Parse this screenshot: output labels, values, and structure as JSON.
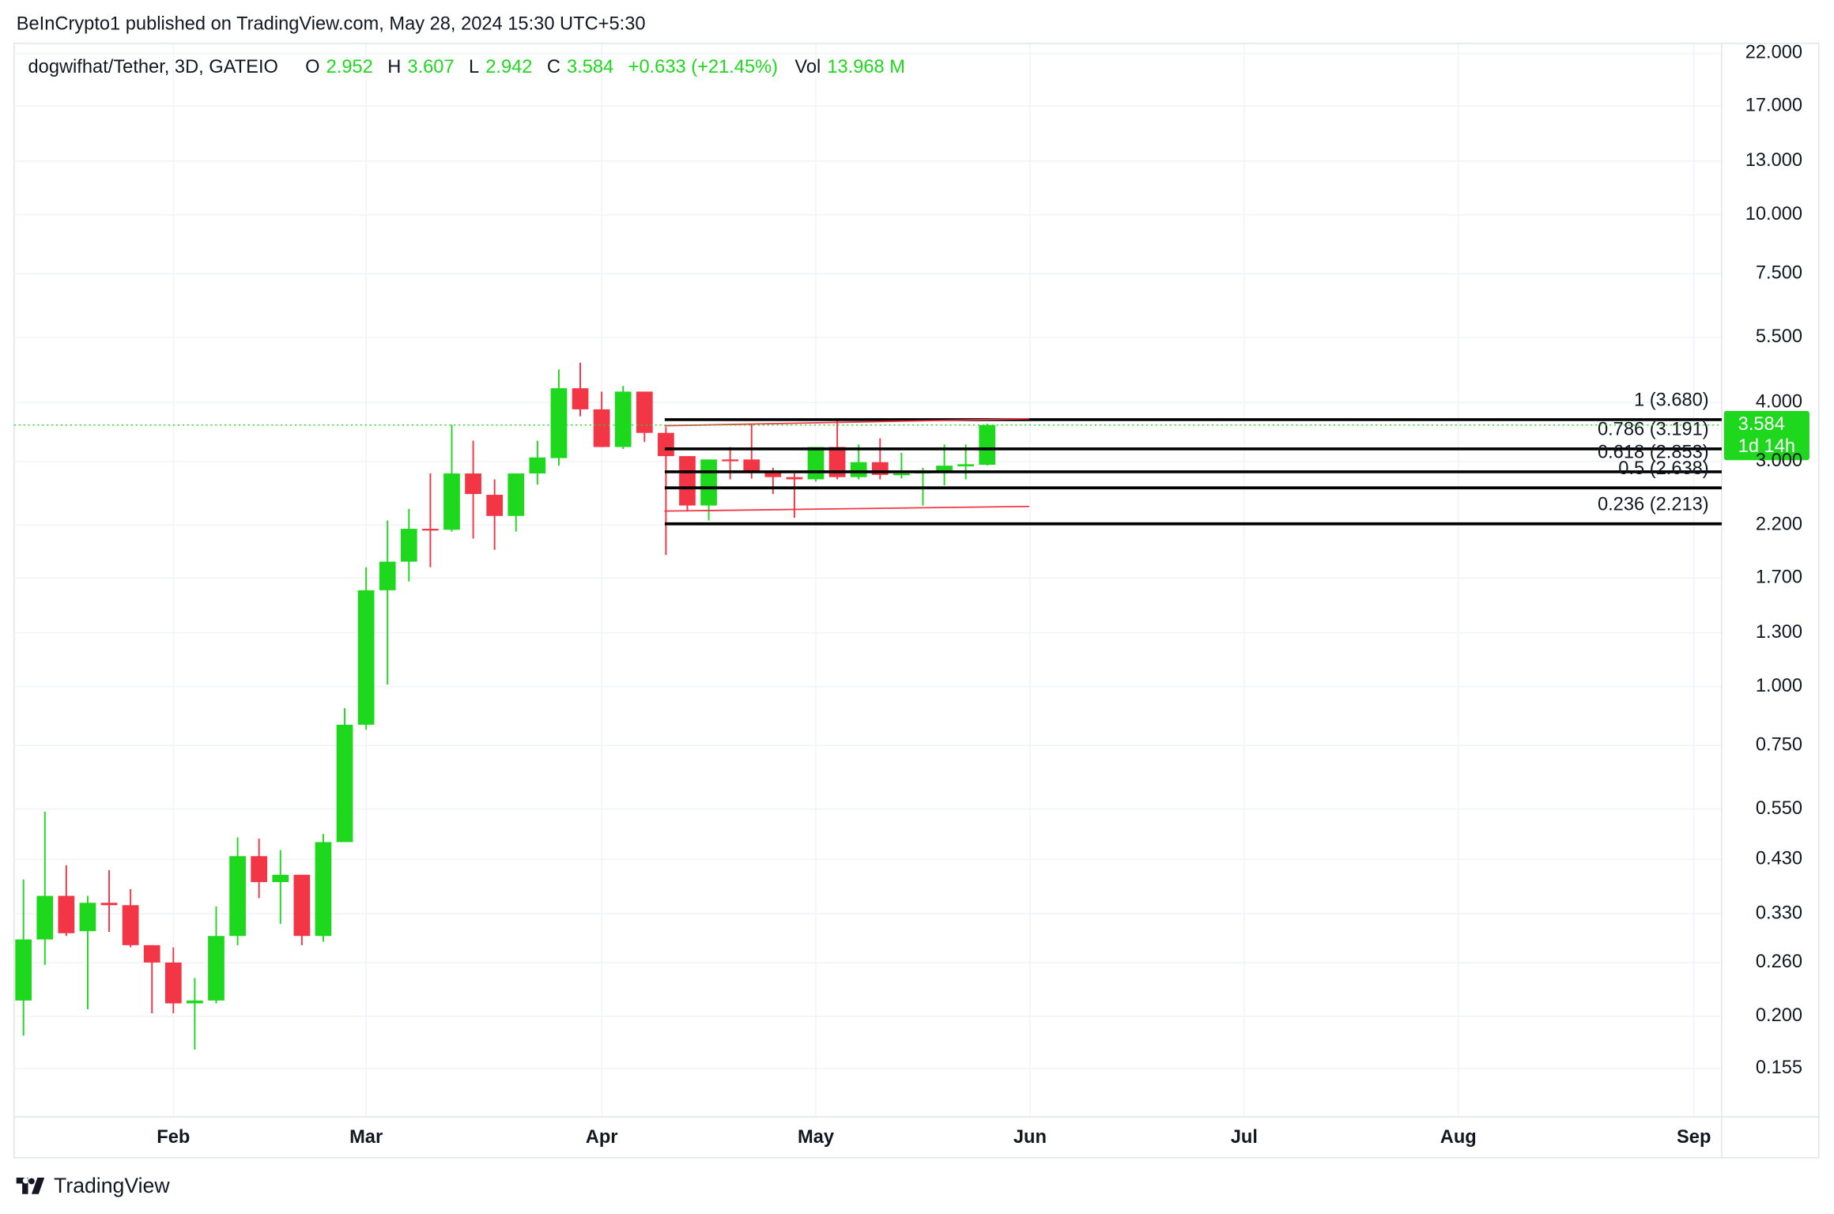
{
  "header": {
    "publisher": "BeInCrypto1 published on TradingView.com, May 28, 2024 15:30 UTC+5:30",
    "brand": "TradingView"
  },
  "chart_data": {
    "type": "candlestick",
    "title": "dogwifhat/Tether, 3D, GATEIO",
    "legend_labels": {
      "open": "O",
      "high": "H",
      "low": "L",
      "close": "C",
      "volume": "Vol"
    },
    "change": "+0.633 (+21.45%)",
    "volume": "13.968 M",
    "countdown": "1d 14h",
    "log_scale": true,
    "grid": true,
    "up_color": "#1ed81e",
    "down_color": "#f23645",
    "open": [
      0.216,
      0.291,
      0.36,
      0.303,
      0.348,
      0.344,
      0.283,
      0.26,
      0.213,
      0.216,
      0.296,
      0.437,
      0.385,
      0.399,
      0.296,
      0.468,
      0.83,
      1.6,
      1.84,
      2.16,
      2.15,
      2.83,
      2.55,
      2.3,
      2.83,
      3.05,
      4.29,
      3.87,
      3.22,
      4.22,
      3.45,
      3.08,
      2.42,
      3.03,
      3.03,
      2.86,
      2.78,
      2.75,
      3.22,
      2.78,
      2.99,
      2.81,
      2.83,
      2.86,
      2.93,
      2.952
    ],
    "high": [
      0.39,
      0.543,
      0.418,
      0.36,
      0.408,
      0.372,
      0.283,
      0.28,
      0.241,
      0.342,
      0.479,
      0.476,
      0.45,
      0.399,
      0.487,
      0.9,
      1.79,
      2.25,
      2.38,
      2.83,
      3.59,
      3.32,
      2.75,
      2.83,
      3.32,
      4.7,
      4.86,
      4.22,
      4.34,
      4.22,
      3.55,
      3.08,
      3.03,
      3.22,
      3.61,
      2.91,
      2.83,
      3.22,
      3.66,
      3.26,
      3.36,
      3.13,
      2.91,
      3.26,
      3.26,
      3.607
    ],
    "low": [
      0.182,
      0.257,
      0.296,
      0.207,
      0.302,
      0.28,
      0.203,
      0.203,
      0.17,
      0.213,
      0.283,
      0.356,
      0.314,
      0.283,
      0.288,
      0.468,
      0.81,
      1.01,
      1.67,
      1.79,
      2.13,
      2.06,
      1.95,
      2.13,
      2.68,
      2.94,
      3.74,
      3.22,
      3.19,
      3.3,
      1.9,
      2.35,
      2.25,
      2.75,
      2.76,
      2.56,
      2.28,
      2.72,
      2.75,
      2.75,
      2.75,
      2.76,
      2.42,
      2.67,
      2.75,
      2.942
    ],
    "close": [
      0.291,
      0.36,
      0.3,
      0.348,
      0.344,
      0.283,
      0.26,
      0.213,
      0.216,
      0.296,
      0.437,
      0.385,
      0.399,
      0.296,
      0.468,
      0.83,
      1.6,
      1.84,
      2.16,
      2.15,
      2.83,
      2.56,
      2.3,
      2.83,
      3.06,
      4.29,
      3.87,
      3.22,
      4.22,
      3.45,
      3.08,
      2.42,
      3.03,
      3.01,
      2.86,
      2.78,
      2.75,
      3.22,
      2.78,
      2.99,
      2.81,
      2.83,
      2.86,
      2.94,
      2.96,
      3.584
    ],
    "xlim": [
      -0.44,
      79.3
    ],
    "xticks": [
      {
        "value": 7,
        "label": "Feb"
      },
      {
        "value": 16,
        "label": "Mar"
      },
      {
        "value": 27,
        "label": "Apr"
      },
      {
        "value": 37,
        "label": "May"
      },
      {
        "value": 47,
        "label": "Jun"
      },
      {
        "value": 57,
        "label": "Jul"
      },
      {
        "value": 67,
        "label": "Aug"
      },
      {
        "value": 78,
        "label": "Sep"
      }
    ],
    "ylim": [
      0.1224,
      23.1
    ],
    "yticks": [
      {
        "value": 22,
        "label": "22.000"
      },
      {
        "value": 17,
        "label": "17.000"
      },
      {
        "value": 13,
        "label": "13.000"
      },
      {
        "value": 10,
        "label": "10.000"
      },
      {
        "value": 7.5,
        "label": "7.500"
      },
      {
        "value": 5.5,
        "label": "5.500"
      },
      {
        "value": 4,
        "label": "4.000"
      },
      {
        "value": 3,
        "label": "3.000"
      },
      {
        "value": 2.2,
        "label": "2.200"
      },
      {
        "value": 1.7,
        "label": "1.700"
      },
      {
        "value": 1.3,
        "label": "1.300"
      },
      {
        "value": 1,
        "label": "1.000"
      },
      {
        "value": 0.75,
        "label": "0.750"
      },
      {
        "value": 0.55,
        "label": "0.550"
      },
      {
        "value": 0.43,
        "label": "0.430"
      },
      {
        "value": 0.33,
        "label": "0.330"
      },
      {
        "value": 0.26,
        "label": "0.260"
      },
      {
        "value": 0.2,
        "label": "0.200"
      },
      {
        "value": 0.155,
        "label": "0.155"
      }
    ],
    "fib_levels": [
      {
        "value": 3.68,
        "label": "1 (3.680)"
      },
      {
        "value": 3.191,
        "label": "0.786 (3.191)"
      },
      {
        "value": 2.853,
        "label": "0.618 (2.853)"
      },
      {
        "value": 2.638,
        "label": "0.5 (2.638)"
      },
      {
        "value": 2.213,
        "label": "0.236 (2.213)"
      }
    ]
  }
}
